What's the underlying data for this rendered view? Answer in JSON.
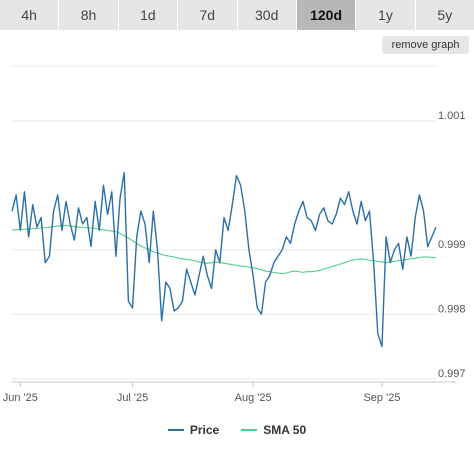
{
  "tabs": [
    {
      "label": "4h",
      "active": false
    },
    {
      "label": "8h",
      "active": false
    },
    {
      "label": "1d",
      "active": false
    },
    {
      "label": "7d",
      "active": false
    },
    {
      "label": "30d",
      "active": false
    },
    {
      "label": "120d",
      "active": true
    },
    {
      "label": "1y",
      "active": false
    },
    {
      "label": "5y",
      "active": false
    }
  ],
  "remove_graph_label": "remove graph",
  "colors": {
    "price": "#2a6fa8",
    "sma": "#4fd08a"
  },
  "chart_data": {
    "type": "line",
    "x_ticks": [
      "Jun '25",
      "Jul '25",
      "Aug '25",
      "Sep '25"
    ],
    "y_ticks": [
      "0.997",
      "0.998",
      "0.999",
      "1.001"
    ],
    "ylim": [
      0.99695,
      1.00185
    ],
    "grid": true,
    "legend": "bottom",
    "series": [
      {
        "name": "Price",
        "values": [
          0.9996,
          0.99985,
          0.9993,
          0.9999,
          0.9992,
          0.9997,
          0.99935,
          0.9995,
          0.9988,
          0.9989,
          0.9996,
          0.99985,
          0.9993,
          0.99975,
          0.9994,
          0.99915,
          0.99965,
          0.9994,
          0.9995,
          0.99905,
          0.99975,
          0.9993,
          1.0,
          0.99955,
          0.9999,
          0.9989,
          0.9998,
          1.0002,
          0.9982,
          0.9981,
          0.9992,
          0.9996,
          0.9994,
          0.9988,
          0.9996,
          0.999,
          0.9979,
          0.9985,
          0.9984,
          0.99805,
          0.9981,
          0.9982,
          0.9987,
          0.9985,
          0.9983,
          0.9986,
          0.9989,
          0.9986,
          0.9984,
          0.999,
          0.9988,
          0.9995,
          0.9993,
          0.9997,
          1.00015,
          1.0,
          0.9996,
          0.999,
          0.9986,
          0.9981,
          0.998,
          0.9985,
          0.9986,
          0.9988,
          0.9989,
          0.999,
          0.9992,
          0.9991,
          0.9994,
          0.9996,
          0.99975,
          0.9995,
          0.99945,
          0.9993,
          0.99955,
          0.99965,
          0.99945,
          0.9994,
          0.99955,
          0.9998,
          0.9997,
          0.9999,
          0.9996,
          0.9994,
          0.99975,
          0.99945,
          0.9996,
          0.9988,
          0.9977,
          0.9975,
          0.9992,
          0.9988,
          0.999,
          0.9991,
          0.9987,
          0.9992,
          0.9989,
          0.9995,
          0.99985,
          0.9996,
          0.99905,
          0.9992,
          0.99935
        ],
        "color": "#2a6fa8"
      },
      {
        "name": "SMA 50",
        "values": [
          0.99931,
          0.99931,
          0.99932,
          0.99932,
          0.99932,
          0.99933,
          0.99933,
          0.99934,
          0.99934,
          0.99935,
          0.99936,
          0.99937,
          0.99937,
          0.99938,
          0.99937,
          0.99936,
          0.99935,
          0.99935,
          0.99934,
          0.99934,
          0.99933,
          0.99932,
          0.99931,
          0.9993,
          0.99929,
          0.99928,
          0.99925,
          0.99922,
          0.99918,
          0.99914,
          0.9991,
          0.99906,
          0.99903,
          0.999,
          0.99897,
          0.99895,
          0.99893,
          0.99891,
          0.9989,
          0.99889,
          0.99887,
          0.99886,
          0.99885,
          0.99884,
          0.99883,
          0.99881,
          0.9988,
          0.99879,
          0.9988,
          0.99881,
          0.9988,
          0.99879,
          0.99878,
          0.99877,
          0.99876,
          0.99875,
          0.99874,
          0.99873,
          0.99872,
          0.99871,
          0.99869,
          0.99867,
          0.99866,
          0.99865,
          0.99864,
          0.99863,
          0.99864,
          0.99866,
          0.99867,
          0.99866,
          0.99865,
          0.99866,
          0.99866,
          0.99867,
          0.99868,
          0.9987,
          0.99872,
          0.99874,
          0.99876,
          0.99878,
          0.9988,
          0.99882,
          0.99884,
          0.99885,
          0.99886,
          0.99885,
          0.99884,
          0.99883,
          0.99882,
          0.99881,
          0.9988,
          0.99881,
          0.99882,
          0.99883,
          0.99884,
          0.99885,
          0.99886,
          0.99887,
          0.99888,
          0.99889,
          0.99889,
          0.99888,
          0.99888
        ],
        "color": "#4fd08a"
      }
    ]
  }
}
